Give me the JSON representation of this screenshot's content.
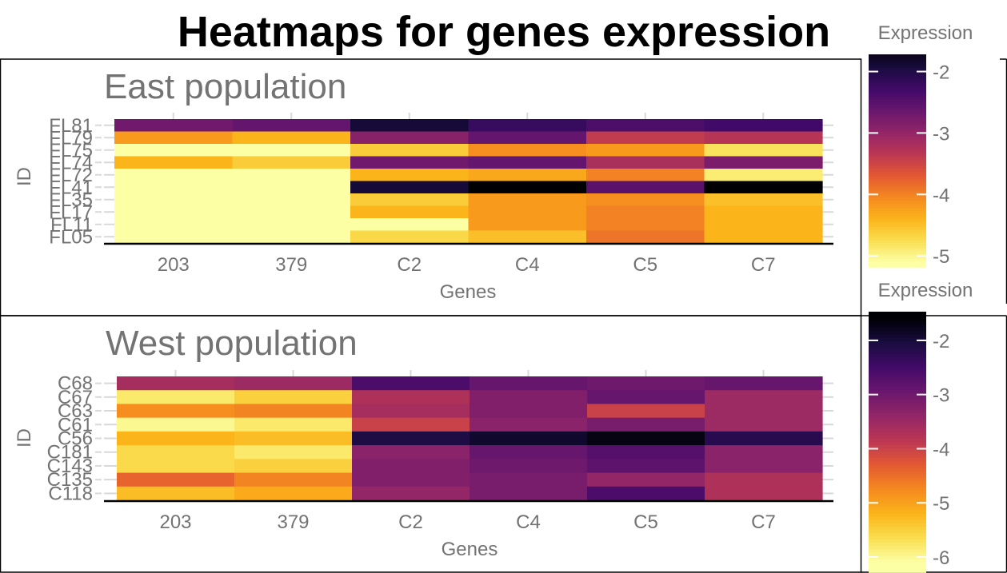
{
  "title": "Heatmaps for genes expression",
  "chart_data": [
    {
      "type": "heatmap",
      "title": "East population",
      "xlabel": "Genes",
      "ylabel": "ID",
      "x_categories": [
        "203",
        "379",
        "C2",
        "C4",
        "C5",
        "C7"
      ],
      "y_categories": [
        "FL81",
        "FL79",
        "FL75",
        "FL74",
        "FL72",
        "FL41",
        "FL35",
        "FL17",
        "FL11",
        "FL05"
      ],
      "values": [
        [
          -2.7,
          -2.6,
          -1.9,
          -2.2,
          -2.4,
          -2.3
        ],
        [
          -4.2,
          -4.4,
          -2.9,
          -2.6,
          -3.4,
          -3.3
        ],
        [
          -5.9,
          -5.8,
          -4.6,
          -4.1,
          -4.2,
          -4.8
        ],
        [
          -4.4,
          -4.6,
          -2.7,
          -2.6,
          -3.2,
          -2.8
        ],
        [
          -6.1,
          -5.9,
          -4.4,
          -4.3,
          -4.0,
          -4.9
        ],
        [
          -6.2,
          -6.0,
          -1.9,
          -1.6,
          -2.5,
          -1.6
        ],
        [
          -5.2,
          -5.4,
          -4.6,
          -4.2,
          -4.1,
          -4.5
        ],
        [
          -5.6,
          -5.3,
          -4.4,
          -4.2,
          -4.0,
          -4.4
        ],
        [
          -5.5,
          -5.3,
          -5.2,
          -4.2,
          -4.0,
          -4.4
        ],
        [
          -5.8,
          -5.7,
          -4.7,
          -4.5,
          -3.9,
          -4.4
        ]
      ],
      "colorbar": {
        "title": "Expression",
        "ticks": [
          "-2",
          "-3",
          "-4",
          "-5"
        ],
        "min": -5.1,
        "max": -1.6
      },
      "grid": true,
      "legend": "right"
    },
    {
      "type": "heatmap",
      "title": "West population",
      "xlabel": "Genes",
      "ylabel": "ID",
      "x_categories": [
        "203",
        "379",
        "C2",
        "C4",
        "C5",
        "C7"
      ],
      "y_categories": [
        "C68",
        "C67",
        "C63",
        "C61",
        "C56",
        "C181",
        "C143",
        "C135",
        "C118"
      ],
      "values": [
        [
          -3.6,
          -3.5,
          -2.6,
          -2.9,
          -3.0,
          -2.9
        ],
        [
          -5.8,
          -5.5,
          -3.7,
          -3.2,
          -2.9,
          -3.5
        ],
        [
          -4.8,
          -4.7,
          -3.6,
          -3.2,
          -4.0,
          -3.5
        ],
        [
          -6.0,
          -5.8,
          -4.0,
          -3.3,
          -3.1,
          -3.5
        ],
        [
          -5.2,
          -5.3,
          -2.1,
          -1.9,
          -1.7,
          -2.2
        ],
        [
          -5.6,
          -5.8,
          -3.3,
          -2.9,
          -2.7,
          -3.3
        ],
        [
          -5.6,
          -5.5,
          -3.2,
          -3.0,
          -2.8,
          -3.3
        ],
        [
          -4.4,
          -4.7,
          -3.2,
          -3.1,
          -3.4,
          -3.7
        ],
        [
          -5.3,
          -5.1,
          -3.4,
          -3.1,
          -2.6,
          -3.7
        ]
      ],
      "colorbar": {
        "title": "Expression",
        "ticks": [
          "-2",
          "-3",
          "-4",
          "-5",
          "-6"
        ],
        "min": -6.1,
        "max": -1.6
      },
      "grid": true,
      "legend": "right"
    }
  ]
}
